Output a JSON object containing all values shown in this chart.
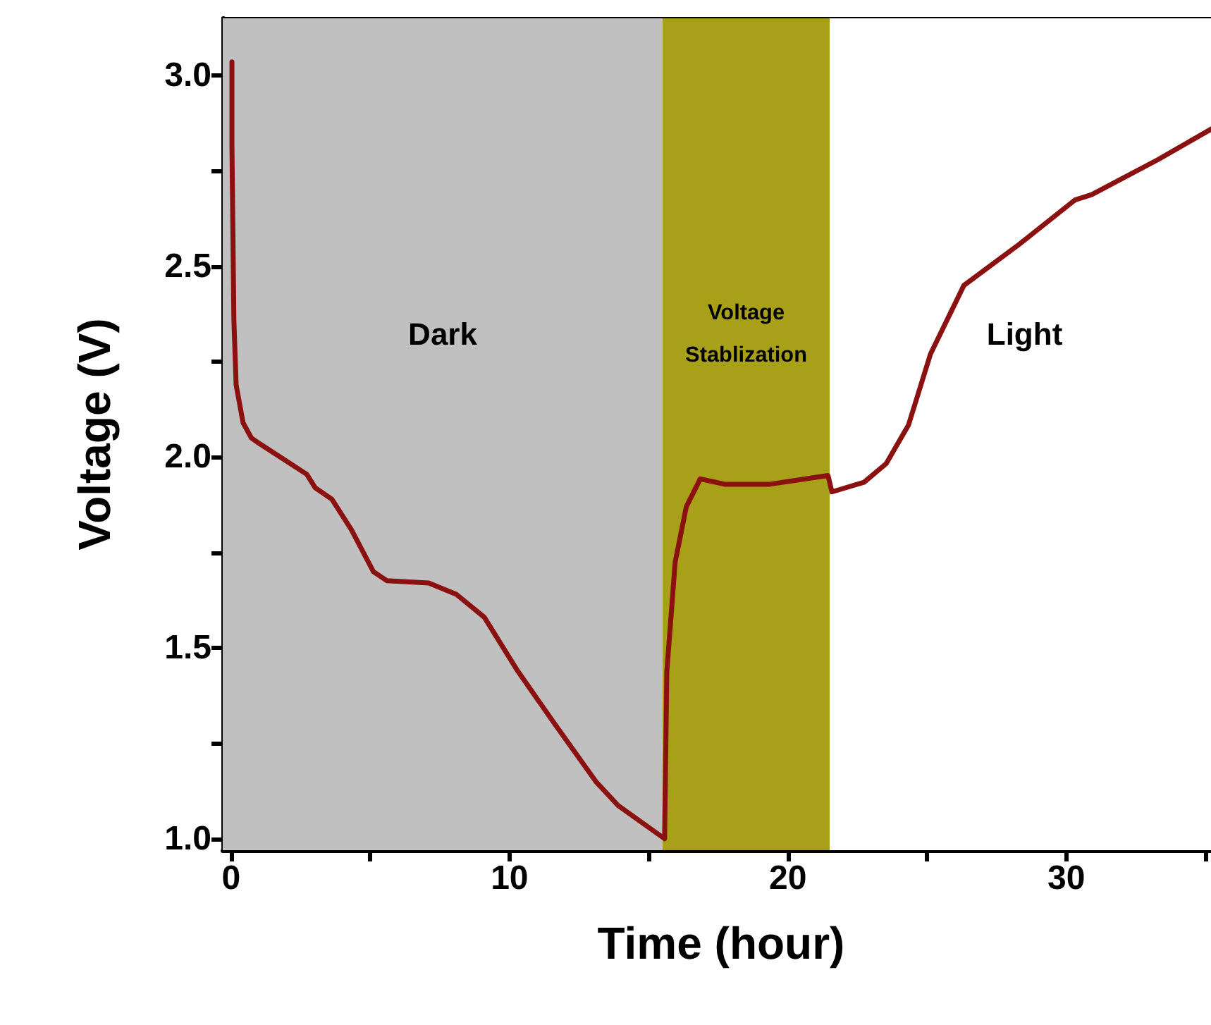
{
  "chart_data": {
    "type": "line",
    "xlabel": "Time (hour)",
    "ylabel": "Voltage (V)",
    "xlim": [
      -0.3,
      35.5
    ],
    "xticks": [
      0,
      {
        "value": 5,
        "label": null
      },
      10,
      {
        "value": 15,
        "label": null
      },
      20,
      {
        "value": 25,
        "label": null
      },
      30,
      {
        "value": 35,
        "label": null
      }
    ],
    "ylim": [
      0.97,
      3.15
    ],
    "yticks": [
      {
        "value": 1,
        "label": "1.0"
      },
      {
        "value": 1.25,
        "label": null
      },
      1.5,
      {
        "value": 1.75,
        "label": null
      },
      {
        "value": 2,
        "label": "2.0"
      },
      {
        "value": 2.25,
        "label": null
      },
      2.5,
      {
        "value": 2.75,
        "label": null
      },
      {
        "value": 3,
        "label": "3.0"
      }
    ],
    "marker": "none",
    "line_style": "solid",
    "bands": [
      {
        "axis": "x",
        "from": -0.3,
        "to": 15.5,
        "label": "Dark",
        "color": "#c0c0c0"
      },
      {
        "axis": "x",
        "from": 15.5,
        "to": 21.5,
        "label": "Voltage\nStablization",
        "color": "#a8a018"
      },
      {
        "axis": "x",
        "from": 21.5,
        "to": 35.5,
        "label": "Light",
        "color": "#ffffff"
      }
    ],
    "series": [
      {
        "color": "#8b1010",
        "x": [
          0.03,
          0.03,
          0.1,
          0.18,
          0.43,
          0.73,
          1.03,
          2.72,
          3.02,
          3.62,
          4.32,
          5.11,
          5.6,
          7.1,
          8.1,
          9.1,
          10.29,
          11.68,
          13.1,
          13.9,
          15.57,
          15.59,
          15.65,
          15.95,
          16.35,
          16.85,
          17.73,
          19.35,
          21.44,
          21.58,
          22.73,
          23.53,
          24.33,
          25.12,
          26.32,
          28.31,
          30.31,
          30.91,
          33.3,
          35.4
        ],
        "values": [
          3.036,
          2.82,
          2.36,
          2.19,
          2.09,
          2.05,
          2.035,
          1.955,
          1.92,
          1.89,
          1.81,
          1.7,
          1.676,
          1.67,
          1.64,
          1.58,
          1.44,
          1.295,
          1.15,
          1.087,
          1.0,
          1.0,
          1.437,
          1.725,
          1.87,
          1.943,
          1.929,
          1.929,
          1.952,
          1.909,
          1.934,
          1.983,
          2.084,
          2.27,
          2.45,
          2.558,
          2.674,
          2.688,
          2.78,
          2.868
        ]
      }
    ]
  }
}
